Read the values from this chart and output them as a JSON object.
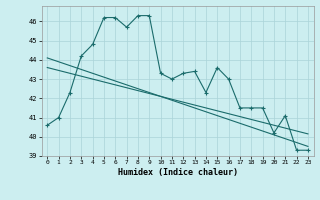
{
  "xlabel": "Humidex (Indice chaleur)",
  "background_color": "#cceef0",
  "grid_color": "#aad4d8",
  "line_color": "#1a6b6b",
  "x_values": [
    0,
    1,
    2,
    3,
    4,
    5,
    6,
    7,
    8,
    9,
    10,
    11,
    12,
    13,
    14,
    15,
    16,
    17,
    18,
    19,
    20,
    21,
    22,
    23
  ],
  "y_main": [
    40.6,
    41.0,
    42.3,
    44.2,
    44.8,
    46.2,
    46.2,
    45.7,
    46.3,
    46.3,
    43.3,
    43.0,
    43.3,
    43.4,
    42.3,
    43.6,
    43.0,
    41.5,
    41.5,
    41.5,
    40.2,
    41.1,
    39.3,
    39.3
  ],
  "y_trend1": [
    44.1,
    43.9,
    43.7,
    43.5,
    43.3,
    43.1,
    42.9,
    42.7,
    42.5,
    42.3,
    42.1,
    41.9,
    41.7,
    41.5,
    41.3,
    41.1,
    40.9,
    40.7,
    40.5,
    40.3,
    40.1,
    39.9,
    39.7,
    39.5
  ],
  "y_trend2": [
    43.6,
    43.45,
    43.3,
    43.15,
    43.0,
    42.85,
    42.7,
    42.55,
    42.4,
    42.25,
    42.1,
    41.95,
    41.8,
    41.65,
    41.5,
    41.35,
    41.2,
    41.05,
    40.9,
    40.75,
    40.6,
    40.45,
    40.3,
    40.15
  ],
  "ylim": [
    39,
    46.8
  ],
  "xlim": [
    -0.5,
    23.5
  ],
  "yticks": [
    39,
    40,
    41,
    42,
    43,
    44,
    45,
    46
  ],
  "xticks": [
    0,
    1,
    2,
    3,
    4,
    5,
    6,
    7,
    8,
    9,
    10,
    11,
    12,
    13,
    14,
    15,
    16,
    17,
    18,
    19,
    20,
    21,
    22,
    23
  ]
}
